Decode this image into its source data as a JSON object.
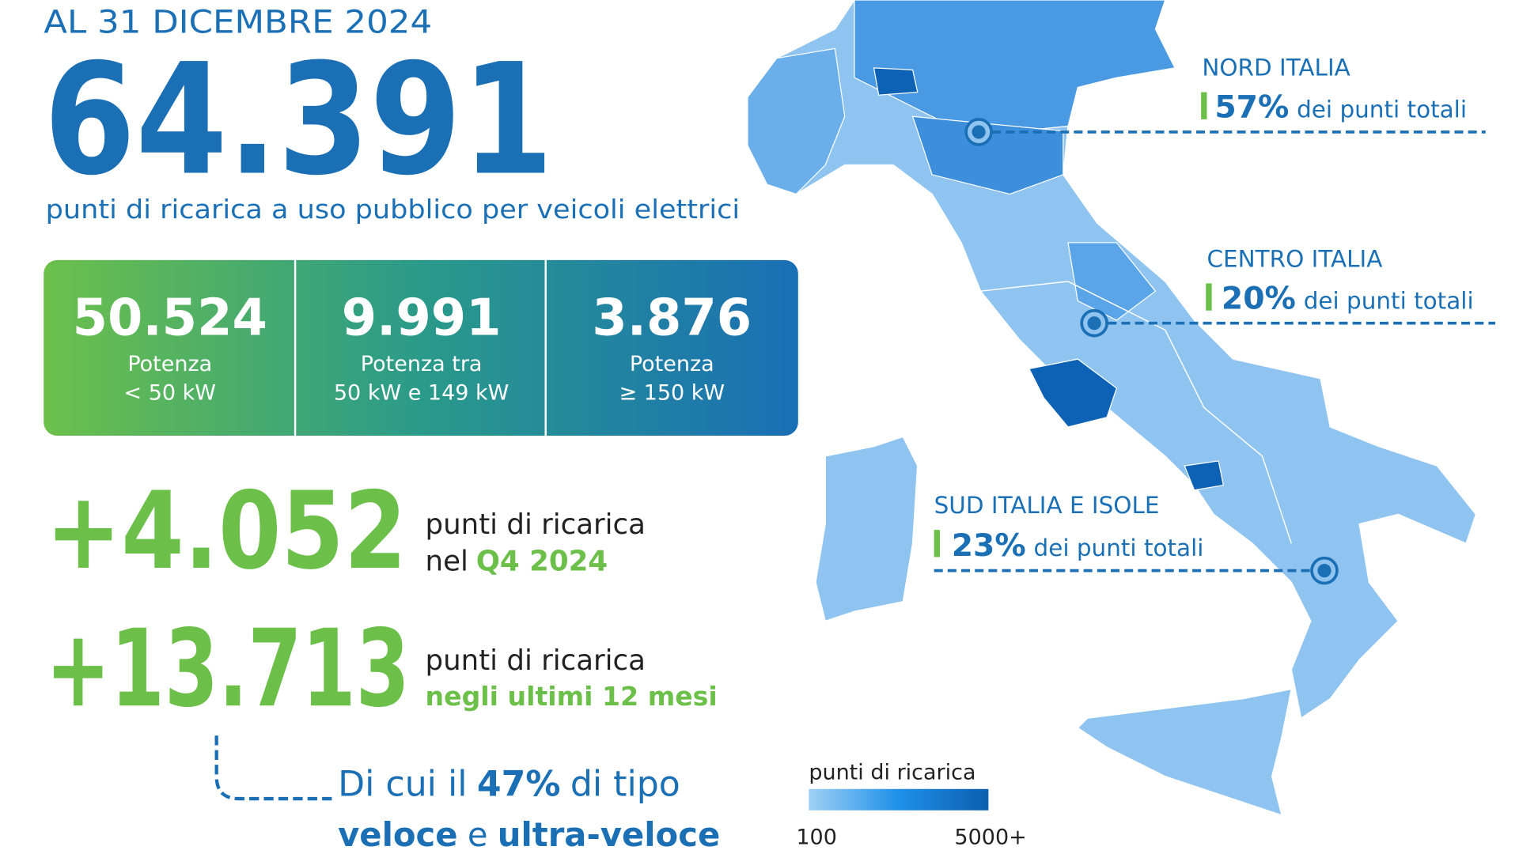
{
  "header": {
    "date": "AL 31 DICEMBRE 2024",
    "total": "64.391",
    "subtitle": "punti di ricarica a uso pubblico per veicoli elettrici"
  },
  "power_boxes": [
    {
      "value": "50.524",
      "line1": "Potenza",
      "line2": "< 50 kW"
    },
    {
      "value": "9.991",
      "line1": "Potenza tra",
      "line2": "50 kW e 149 kW"
    },
    {
      "value": "3.876",
      "line1": "Potenza",
      "line2": "≥ 150 kW"
    }
  ],
  "growth": [
    {
      "value": "+4.052",
      "line1": "punti di ricarica",
      "line2_prefix": "nel",
      "line2_highlight": "Q4 2024"
    },
    {
      "value": "+13.713",
      "line1": "punti di ricarica",
      "line2_highlight": "negli ultimi 12 mesi"
    }
  ],
  "note": {
    "part1": "Di cui il",
    "percent": "47%",
    "part2": "di tipo",
    "fast": "veloce",
    "and": "e",
    "ultra": "ultra-veloce"
  },
  "regions": [
    {
      "name": "NORD ITALIA",
      "share": "57%",
      "text": "dei punti totali"
    },
    {
      "name": "CENTRO ITALIA",
      "share": "20%",
      "text": "dei punti totali"
    },
    {
      "name": "SUD ITALIA E ISOLE",
      "share": "23%",
      "text": "dei punti totali"
    }
  ],
  "legend": {
    "title": "punti di ricarica",
    "min": "100",
    "max": "5000+"
  }
}
